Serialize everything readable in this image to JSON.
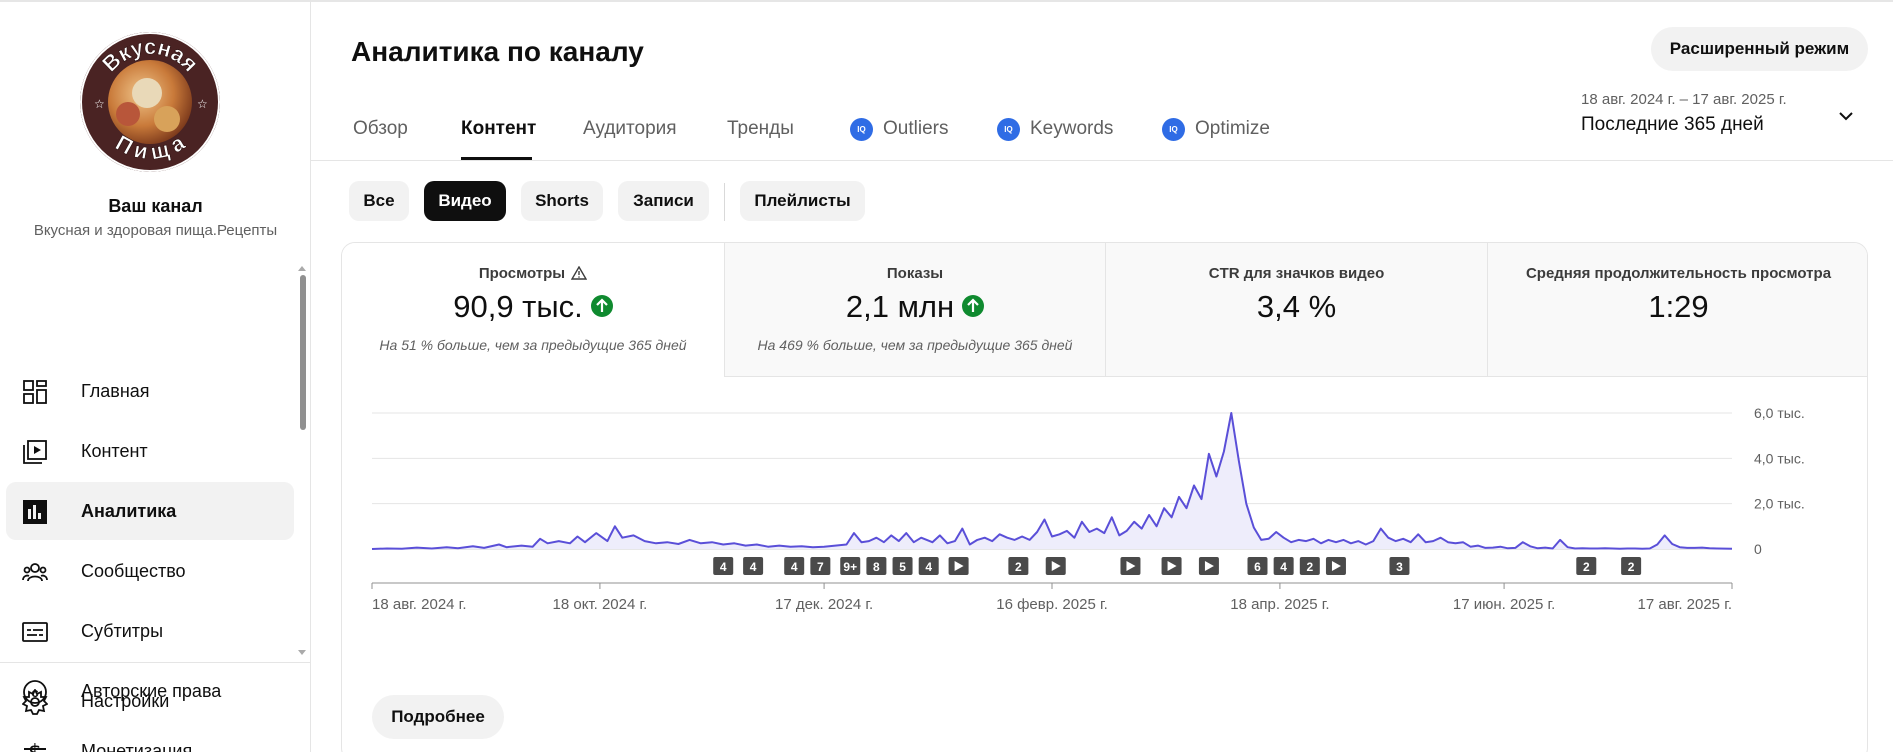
{
  "channel": {
    "name": "Ваш канал",
    "description": "Вкусная и здоровая пища.Рецепты",
    "logo_text_top": "Вкусная",
    "logo_text_bottom": "Пища"
  },
  "sidebar": {
    "items": [
      {
        "label": "Главная",
        "icon": "dashboard-icon"
      },
      {
        "label": "Контент",
        "icon": "content-icon"
      },
      {
        "label": "Аналитика",
        "icon": "analytics-icon",
        "active": true
      },
      {
        "label": "Сообщество",
        "icon": "community-icon"
      },
      {
        "label": "Субтитры",
        "icon": "subtitles-icon"
      },
      {
        "label": "Авторские права",
        "icon": "copyright-icon"
      },
      {
        "label": "Монетизация",
        "icon": "monetization-icon"
      }
    ],
    "settings_label": "Настройки"
  },
  "header": {
    "title": "Аналитика по каналу",
    "advanced_button": "Расширенный режим",
    "tabs": [
      {
        "label": "Обзор"
      },
      {
        "label": "Контент",
        "active": true
      },
      {
        "label": "Аудитория"
      },
      {
        "label": "Тренды"
      },
      {
        "label": "Outliers",
        "badge": "IQ"
      },
      {
        "label": "Keywords",
        "badge": "IQ"
      },
      {
        "label": "Optimize",
        "badge": "IQ"
      }
    ],
    "date_range": "18 авг. 2024 г. – 17 авг. 2025 г.",
    "period": "Последние 365 дней"
  },
  "filters": {
    "chips": [
      "Все",
      "Видео",
      "Shorts",
      "Записи",
      "Плейлисты"
    ],
    "active": "Видео"
  },
  "metrics": [
    {
      "label": "Просмотры",
      "value": "90,9 тыс.",
      "trend": "up",
      "note": "На 51 % больше, чем за предыдущие 365 дней",
      "warning": true
    },
    {
      "label": "Показы",
      "value": "2,1 млн",
      "trend": "up",
      "note": "На 469 % больше, чем за предыдущие 365 дней"
    },
    {
      "label": "CTR для значков видео",
      "value": "3,4 %"
    },
    {
      "label": "Средняя продолжительность просмотра",
      "value": "1:29"
    }
  ],
  "more_button": "Подробнее",
  "colors": {
    "line": "#5a4fd8",
    "fill": "#eeedfb",
    "positive": "#0f8a2f",
    "iq_badge": "#2f6ce5"
  },
  "chart_data": {
    "type": "area",
    "ylabel_ticks": [
      "0",
      "2,0 тыс.",
      "4,0 тыс.",
      "6,0 тыс."
    ],
    "ylim": [
      0,
      6000
    ],
    "xlim": [
      0,
      364
    ],
    "x_tick_labels": [
      {
        "day": 0,
        "label": "18 авг. 2024 г."
      },
      {
        "day": 61,
        "label": "18 окт. 2024 г."
      },
      {
        "day": 121,
        "label": "17 дек. 2024 г."
      },
      {
        "day": 182,
        "label": "16 февр. 2025 г."
      },
      {
        "day": 243,
        "label": "18 апр. 2025 г."
      },
      {
        "day": 303,
        "label": "17 июн. 2025 г."
      },
      {
        "day": 364,
        "label": "17 авг. 2025 г."
      }
    ],
    "series": [
      {
        "points": [
          [
            0,
            0
          ],
          [
            4,
            20
          ],
          [
            8,
            10
          ],
          [
            12,
            60
          ],
          [
            16,
            20
          ],
          [
            20,
            80
          ],
          [
            23,
            30
          ],
          [
            27,
            120
          ],
          [
            30,
            50
          ],
          [
            34,
            200
          ],
          [
            36,
            80
          ],
          [
            40,
            150
          ],
          [
            43,
            100
          ],
          [
            45,
            450
          ],
          [
            47,
            250
          ],
          [
            50,
            350
          ],
          [
            53,
            250
          ],
          [
            55,
            550
          ],
          [
            57,
            300
          ],
          [
            60,
            700
          ],
          [
            63,
            350
          ],
          [
            65,
            1000
          ],
          [
            67,
            500
          ],
          [
            70,
            600
          ],
          [
            73,
            350
          ],
          [
            76,
            250
          ],
          [
            79,
            300
          ],
          [
            82,
            220
          ],
          [
            85,
            400
          ],
          [
            88,
            250
          ],
          [
            91,
            300
          ],
          [
            94,
            200
          ],
          [
            97,
            250
          ],
          [
            100,
            150
          ],
          [
            103,
            200
          ],
          [
            106,
            100
          ],
          [
            109,
            150
          ],
          [
            112,
            100
          ],
          [
            115,
            120
          ],
          [
            118,
            80
          ],
          [
            121,
            100
          ],
          [
            124,
            150
          ],
          [
            127,
            200
          ],
          [
            129,
            700
          ],
          [
            131,
            300
          ],
          [
            133,
            350
          ],
          [
            135,
            500
          ],
          [
            137,
            300
          ],
          [
            139,
            600
          ],
          [
            141,
            350
          ],
          [
            143,
            700
          ],
          [
            145,
            300
          ],
          [
            147,
            500
          ],
          [
            150,
            300
          ],
          [
            152,
            600
          ],
          [
            154,
            250
          ],
          [
            156,
            350
          ],
          [
            158,
            900
          ],
          [
            160,
            200
          ],
          [
            162,
            400
          ],
          [
            164,
            500
          ],
          [
            166,
            350
          ],
          [
            168,
            650
          ],
          [
            170,
            500
          ],
          [
            172,
            400
          ],
          [
            174,
            550
          ],
          [
            176,
            400
          ],
          [
            178,
            750
          ],
          [
            180,
            1300
          ],
          [
            182,
            550
          ],
          [
            184,
            650
          ],
          [
            186,
            800
          ],
          [
            188,
            500
          ],
          [
            190,
            1200
          ],
          [
            192,
            750
          ],
          [
            194,
            900
          ],
          [
            196,
            700
          ],
          [
            198,
            1400
          ],
          [
            200,
            600
          ],
          [
            202,
            800
          ],
          [
            204,
            1200
          ],
          [
            206,
            900
          ],
          [
            208,
            1500
          ],
          [
            210,
            1000
          ],
          [
            212,
            1800
          ],
          [
            214,
            1400
          ],
          [
            216,
            2300
          ],
          [
            218,
            1800
          ],
          [
            220,
            2800
          ],
          [
            222,
            2200
          ],
          [
            224,
            4200
          ],
          [
            226,
            3200
          ],
          [
            228,
            4300
          ],
          [
            230,
            6000
          ],
          [
            232,
            3900
          ],
          [
            234,
            2000
          ],
          [
            236,
            950
          ],
          [
            238,
            400
          ],
          [
            240,
            450
          ],
          [
            242,
            750
          ],
          [
            244,
            500
          ],
          [
            246,
            300
          ],
          [
            248,
            400
          ],
          [
            250,
            350
          ],
          [
            252,
            450
          ],
          [
            254,
            250
          ],
          [
            256,
            400
          ],
          [
            258,
            300
          ],
          [
            260,
            400
          ],
          [
            262,
            250
          ],
          [
            264,
            350
          ],
          [
            266,
            200
          ],
          [
            268,
            350
          ],
          [
            270,
            900
          ],
          [
            272,
            500
          ],
          [
            274,
            350
          ],
          [
            276,
            450
          ],
          [
            278,
            300
          ],
          [
            280,
            650
          ],
          [
            282,
            300
          ],
          [
            284,
            350
          ],
          [
            286,
            500
          ],
          [
            288,
            300
          ],
          [
            290,
            250
          ],
          [
            292,
            300
          ],
          [
            294,
            100
          ],
          [
            296,
            150
          ],
          [
            298,
            50
          ],
          [
            300,
            60
          ],
          [
            302,
            100
          ],
          [
            304,
            30
          ],
          [
            306,
            50
          ],
          [
            308,
            300
          ],
          [
            310,
            120
          ],
          [
            312,
            30
          ],
          [
            314,
            60
          ],
          [
            316,
            20
          ],
          [
            318,
            400
          ],
          [
            320,
            80
          ],
          [
            322,
            20
          ],
          [
            324,
            30
          ],
          [
            326,
            20
          ],
          [
            328,
            20
          ],
          [
            330,
            30
          ],
          [
            332,
            20
          ],
          [
            334,
            15
          ],
          [
            336,
            20
          ],
          [
            338,
            20
          ],
          [
            340,
            15
          ],
          [
            342,
            20
          ],
          [
            344,
            200
          ],
          [
            346,
            600
          ],
          [
            348,
            220
          ],
          [
            350,
            80
          ],
          [
            352,
            50
          ],
          [
            354,
            50
          ],
          [
            356,
            60
          ],
          [
            358,
            30
          ],
          [
            360,
            20
          ],
          [
            364,
            10
          ]
        ]
      }
    ],
    "markers": [
      {
        "day": 94,
        "label": "4"
      },
      {
        "day": 102,
        "label": "4"
      },
      {
        "day": 113,
        "label": "4"
      },
      {
        "day": 120,
        "label": "7"
      },
      {
        "day": 128,
        "label": "9+"
      },
      {
        "day": 135,
        "label": "8"
      },
      {
        "day": 142,
        "label": "5"
      },
      {
        "day": 149,
        "label": "4"
      },
      {
        "day": 157,
        "label": "play"
      },
      {
        "day": 173,
        "label": "2"
      },
      {
        "day": 183,
        "label": "play"
      },
      {
        "day": 203,
        "label": "play"
      },
      {
        "day": 214,
        "label": "play"
      },
      {
        "day": 224,
        "label": "play"
      },
      {
        "day": 237,
        "label": "6"
      },
      {
        "day": 244,
        "label": "4"
      },
      {
        "day": 251,
        "label": "2"
      },
      {
        "day": 258,
        "label": "play"
      },
      {
        "day": 275,
        "label": "3"
      },
      {
        "day": 325,
        "label": "2"
      },
      {
        "day": 337,
        "label": "2"
      }
    ]
  }
}
